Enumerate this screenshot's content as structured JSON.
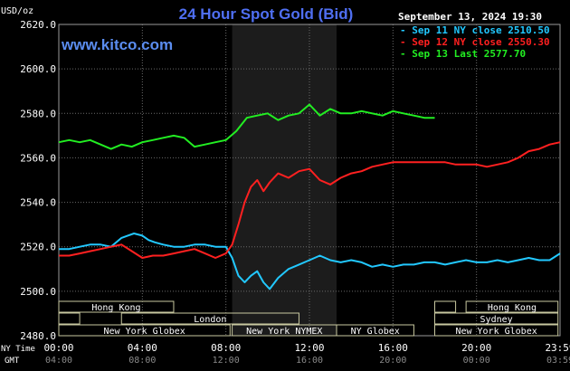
{
  "header": {
    "title": "24 Hour Spot Gold (Bid)",
    "units": "USD/oz",
    "website": "www.kitco.com",
    "timestamp": "September 13, 2024 19:30"
  },
  "colors": {
    "background": "#000000",
    "plot_bg": "#000000",
    "nymex_shade": "#1c1c1c",
    "grid": "#6a6a6a",
    "title": "#4f6ff2",
    "website": "#5b8df0",
    "axis_text": "#ffffff",
    "session_box": "#c8c8a0",
    "session_text": "#ffffff"
  },
  "chart_data": {
    "type": "line",
    "title": "24 Hour Spot Gold (Bid)",
    "ylabel": "USD/oz",
    "xlabel": "",
    "ylim": [
      2480,
      2620
    ],
    "xlim_hours": [
      0,
      24
    ],
    "grid": true,
    "legend_position": "top-right",
    "y_ticks": [
      "2620.0",
      "2600.0",
      "2580.0",
      "2560.0",
      "2540.0",
      "2520.0",
      "2500.0",
      "2480.0"
    ],
    "x_ticks_ny": [
      "00:00",
      "04:00",
      "08:00",
      "12:00",
      "16:00",
      "20:00",
      "23:59"
    ],
    "x_ticks_gmt": [
      "04:00",
      "08:00",
      "12:00",
      "16:00",
      "20:00",
      "00:00",
      "03:59"
    ],
    "row_label_ny": "NY Time",
    "row_label_gmt": "GMT",
    "series": [
      {
        "name": "Sep 11 NY close 2510.50",
        "color": "#22c8ff",
        "x": [
          0,
          0.5,
          1,
          1.5,
          2,
          2.5,
          3,
          3.3,
          3.6,
          4,
          4.3,
          4.6,
          5,
          5.5,
          6,
          6.5,
          7,
          7.5,
          8,
          8.3,
          8.6,
          8.9,
          9.2,
          9.5,
          9.8,
          10.1,
          10.5,
          11,
          11.5,
          12,
          12.5,
          13,
          13.5,
          14,
          14.5,
          15,
          15.5,
          16,
          16.5,
          17,
          17.5,
          18,
          18.5,
          19,
          19.5,
          20,
          20.5,
          21,
          21.5,
          22,
          22.5,
          23,
          23.5,
          24
        ],
        "values": [
          2519,
          2519,
          2520,
          2521,
          2521,
          2520,
          2524,
          2525,
          2526,
          2525,
          2523,
          2522,
          2521,
          2520,
          2520,
          2521,
          2521,
          2520,
          2520,
          2515,
          2507,
          2504,
          2507,
          2509,
          2504,
          2501,
          2506,
          2510,
          2512,
          2514,
          2516,
          2514,
          2513,
          2514,
          2513,
          2511,
          2512,
          2511,
          2512,
          2512,
          2513,
          2513,
          2512,
          2513,
          2514,
          2513,
          2513,
          2514,
          2513,
          2514,
          2515,
          2514,
          2514,
          2517
        ]
      },
      {
        "name": "Sep 12 NY close 2550.30",
        "color": "#ff2020",
        "x": [
          0,
          0.5,
          1,
          1.5,
          2,
          2.5,
          3,
          3.5,
          4,
          4.5,
          5,
          5.5,
          6,
          6.5,
          7,
          7.5,
          8,
          8.3,
          8.6,
          8.9,
          9.2,
          9.5,
          9.8,
          10.1,
          10.5,
          11,
          11.5,
          12,
          12.5,
          13,
          13.5,
          14,
          14.5,
          15,
          15.5,
          16,
          16.5,
          17,
          17.5,
          18,
          18.5,
          19,
          19.5,
          20,
          20.5,
          21,
          21.5,
          22,
          22.5,
          23,
          23.5,
          24
        ],
        "values": [
          2516,
          2516,
          2517,
          2518,
          2519,
          2520,
          2521,
          2518,
          2515,
          2516,
          2516,
          2517,
          2518,
          2519,
          2517,
          2515,
          2517,
          2521,
          2530,
          2540,
          2547,
          2550,
          2545,
          2549,
          2553,
          2551,
          2554,
          2555,
          2550,
          2548,
          2551,
          2553,
          2554,
          2556,
          2557,
          2558,
          2558,
          2558,
          2558,
          2558,
          2558,
          2557,
          2557,
          2557,
          2556,
          2557,
          2558,
          2560,
          2563,
          2564,
          2566,
          2567
        ]
      },
      {
        "name": "Sep 13 Last 2577.70",
        "color": "#22ee22",
        "x": [
          0,
          0.5,
          1,
          1.5,
          2,
          2.5,
          3,
          3.5,
          4,
          4.5,
          5,
          5.5,
          6,
          6.5,
          7,
          7.5,
          8,
          8.5,
          9,
          9.5,
          10,
          10.5,
          11,
          11.5,
          12,
          12.5,
          13,
          13.5,
          14,
          14.5,
          15,
          15.5,
          16,
          16.5,
          17,
          17.5,
          18
        ],
        "values": [
          2567,
          2568,
          2567,
          2568,
          2566,
          2564,
          2566,
          2565,
          2567,
          2568,
          2569,
          2570,
          2569,
          2565,
          2566,
          2567,
          2568,
          2572,
          2578,
          2579,
          2580,
          2577,
          2579,
          2580,
          2584,
          2579,
          2582,
          2580,
          2580,
          2581,
          2580,
          2579,
          2581,
          2580,
          2579,
          2578,
          2578
        ]
      }
    ],
    "shaded_region": {
      "label": "New York NYMEX",
      "from_hour": 8.3,
      "to_hour": 13.3
    }
  },
  "sessions": [
    {
      "label": "Hong Kong",
      "from_hour": 0.0,
      "to_hour": 5.5,
      "row": 0
    },
    {
      "label": "Hong Kong",
      "from_hour": 19.5,
      "to_hour": 23.9,
      "row": 0
    },
    {
      "label": "London",
      "from_hour": 3.0,
      "to_hour": 11.5,
      "row": 1
    },
    {
      "label": "Sydney",
      "from_hour": 18.0,
      "to_hour": 23.9,
      "row": 1
    },
    {
      "label": "New York Globex",
      "from_hour": 0.0,
      "to_hour": 8.2,
      "row": 2
    },
    {
      "label": "New York NYMEX",
      "from_hour": 8.3,
      "to_hour": 13.3,
      "row": 2
    },
    {
      "label": "NY Globex",
      "from_hour": 13.3,
      "to_hour": 17.0,
      "row": 2
    },
    {
      "label": "New York Globex",
      "from_hour": 18.0,
      "to_hour": 23.9,
      "row": 2
    }
  ],
  "session_stubs": [
    {
      "from_hour": 0.0,
      "to_hour": 1.0,
      "row": 1
    },
    {
      "from_hour": 18.0,
      "to_hour": 19.0,
      "row": 0
    }
  ]
}
